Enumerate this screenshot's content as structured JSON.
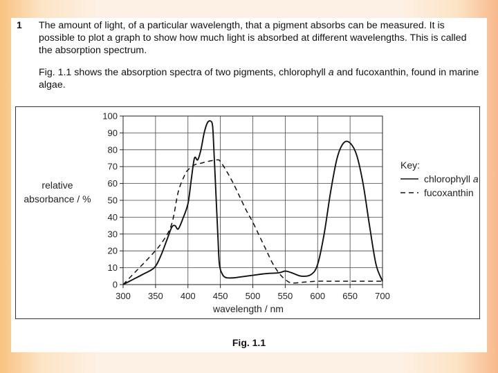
{
  "question": {
    "number": "1",
    "paragraph1": "The amount of light, of a particular wavelength, that a pigment absorbs can be measured. It is possible to plot a graph to show how much light is absorbed at different wavelengths. This is called the absorption spectrum.",
    "paragraph2_before_italic": "Fig. 1.1 shows the absorption spectra of two pigments, chlorophyll ",
    "paragraph2_italic": "a",
    "paragraph2_after_italic": " and fucoxanthin, found in marine algae."
  },
  "figure": {
    "caption": "Fig. 1.1"
  },
  "chart_data": {
    "type": "line",
    "xlabel": "wavelength / nm",
    "ylabel_line1": "relative",
    "ylabel_line2": "absorbance / %",
    "xlim": [
      300,
      700
    ],
    "ylim": [
      0,
      100
    ],
    "xticks": [
      300,
      350,
      400,
      450,
      500,
      550,
      600,
      650,
      700
    ],
    "yticks": [
      0,
      10,
      20,
      30,
      40,
      50,
      60,
      70,
      80,
      90,
      100
    ],
    "grid": true,
    "legend": {
      "title": "Key:",
      "placement": "right",
      "entries": [
        {
          "label": "chlorophyll ",
          "italic_suffix": "a",
          "style": "solid"
        },
        {
          "label": "fucoxanthin",
          "italic_suffix": "",
          "style": "dashed"
        }
      ]
    },
    "series": [
      {
        "style": "solid",
        "x": [
          300,
          315,
          330,
          348,
          358,
          368,
          375,
          380,
          385,
          392,
          400,
          405,
          410,
          415,
          420,
          425,
          430,
          435,
          438,
          440,
          443,
          446,
          448,
          450,
          452,
          455,
          460,
          470,
          480,
          500,
          520,
          540,
          550,
          560,
          575,
          590,
          600,
          610,
          620,
          630,
          640,
          650,
          660,
          670,
          680,
          690,
          700
        ],
        "y": [
          0,
          3,
          6,
          10,
          17,
          27,
          34,
          35,
          33,
          39,
          48,
          62,
          75,
          74,
          80,
          90,
          96,
          97,
          94,
          80,
          55,
          30,
          14,
          9,
          7,
          5,
          4,
          4,
          4.5,
          5.5,
          6.5,
          7,
          8,
          7,
          5,
          6,
          12,
          30,
          55,
          75,
          84,
          84,
          77,
          60,
          35,
          12,
          2
        ]
      },
      {
        "style": "dashed",
        "x": [
          300,
          320,
          340,
          360,
          375,
          385,
          395,
          400,
          410,
          420,
          430,
          445,
          450,
          460,
          470,
          480,
          490,
          500,
          510,
          520,
          530,
          540,
          550,
          560,
          580,
          600,
          620,
          650,
          700
        ],
        "y": [
          0,
          8,
          16,
          25,
          36,
          55,
          65,
          68,
          71,
          72,
          73,
          74,
          73,
          67,
          60,
          52,
          44,
          37,
          29,
          21,
          13,
          7,
          3,
          1,
          1.5,
          2,
          2,
          2,
          2
        ]
      }
    ]
  }
}
